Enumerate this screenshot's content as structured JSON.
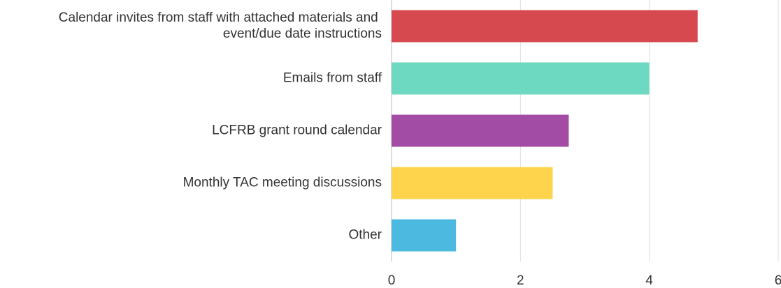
{
  "chart_data": {
    "type": "barh",
    "categories": [
      "Calendar invites from staff with attached materials and event/due date instructions",
      "Emails from staff",
      "LCFRB grant round calendar",
      "Monthly TAC meeting discussions",
      "Other"
    ],
    "values": [
      4.75,
      4.0,
      2.75,
      2.5,
      1.0
    ],
    "colors": [
      "#d64a4f",
      "#6dd9c1",
      "#a24ca5",
      "#fdd44b",
      "#4cb9e1"
    ],
    "xlim": [
      0,
      6
    ],
    "xticks": [
      0,
      2,
      4,
      6
    ],
    "grid": true
  }
}
